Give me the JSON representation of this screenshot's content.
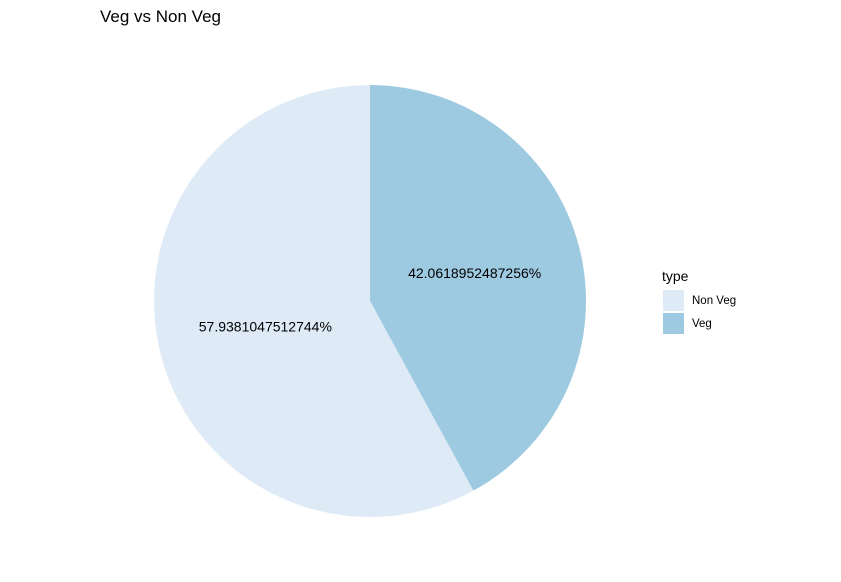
{
  "chart_data": {
    "type": "pie",
    "title": "Veg vs Non Veg",
    "legend_title": "type",
    "legend_position": "right",
    "start_angle_deg": 0,
    "direction": "clockwise",
    "slices": [
      {
        "name": "Veg",
        "value": 42.0618952487256,
        "label": "42.0618952487256%",
        "color": "#9ecae1"
      },
      {
        "name": "Non Veg",
        "value": 57.9381047512744,
        "label": "57.9381047512744%",
        "color": "#deebf7"
      }
    ],
    "legend": [
      {
        "label": "Non Veg",
        "color": "#deebf7"
      },
      {
        "label": "Veg",
        "color": "#9ecae1"
      }
    ]
  }
}
